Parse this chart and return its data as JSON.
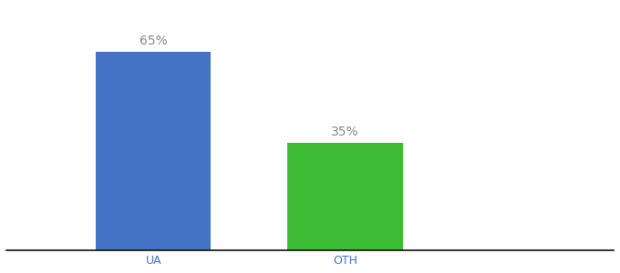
{
  "categories": [
    "UA",
    "OTH"
  ],
  "values": [
    65,
    35
  ],
  "bar_colors": [
    "#4472c4",
    "#3dbb35"
  ],
  "label_texts": [
    "65%",
    "35%"
  ],
  "background_color": "#ffffff",
  "label_color": "#888888",
  "axis_label_color": "#4472c4",
  "bar_width": 0.18,
  "ylim": [
    0,
    80
  ],
  "label_fontsize": 10,
  "tick_fontsize": 9
}
